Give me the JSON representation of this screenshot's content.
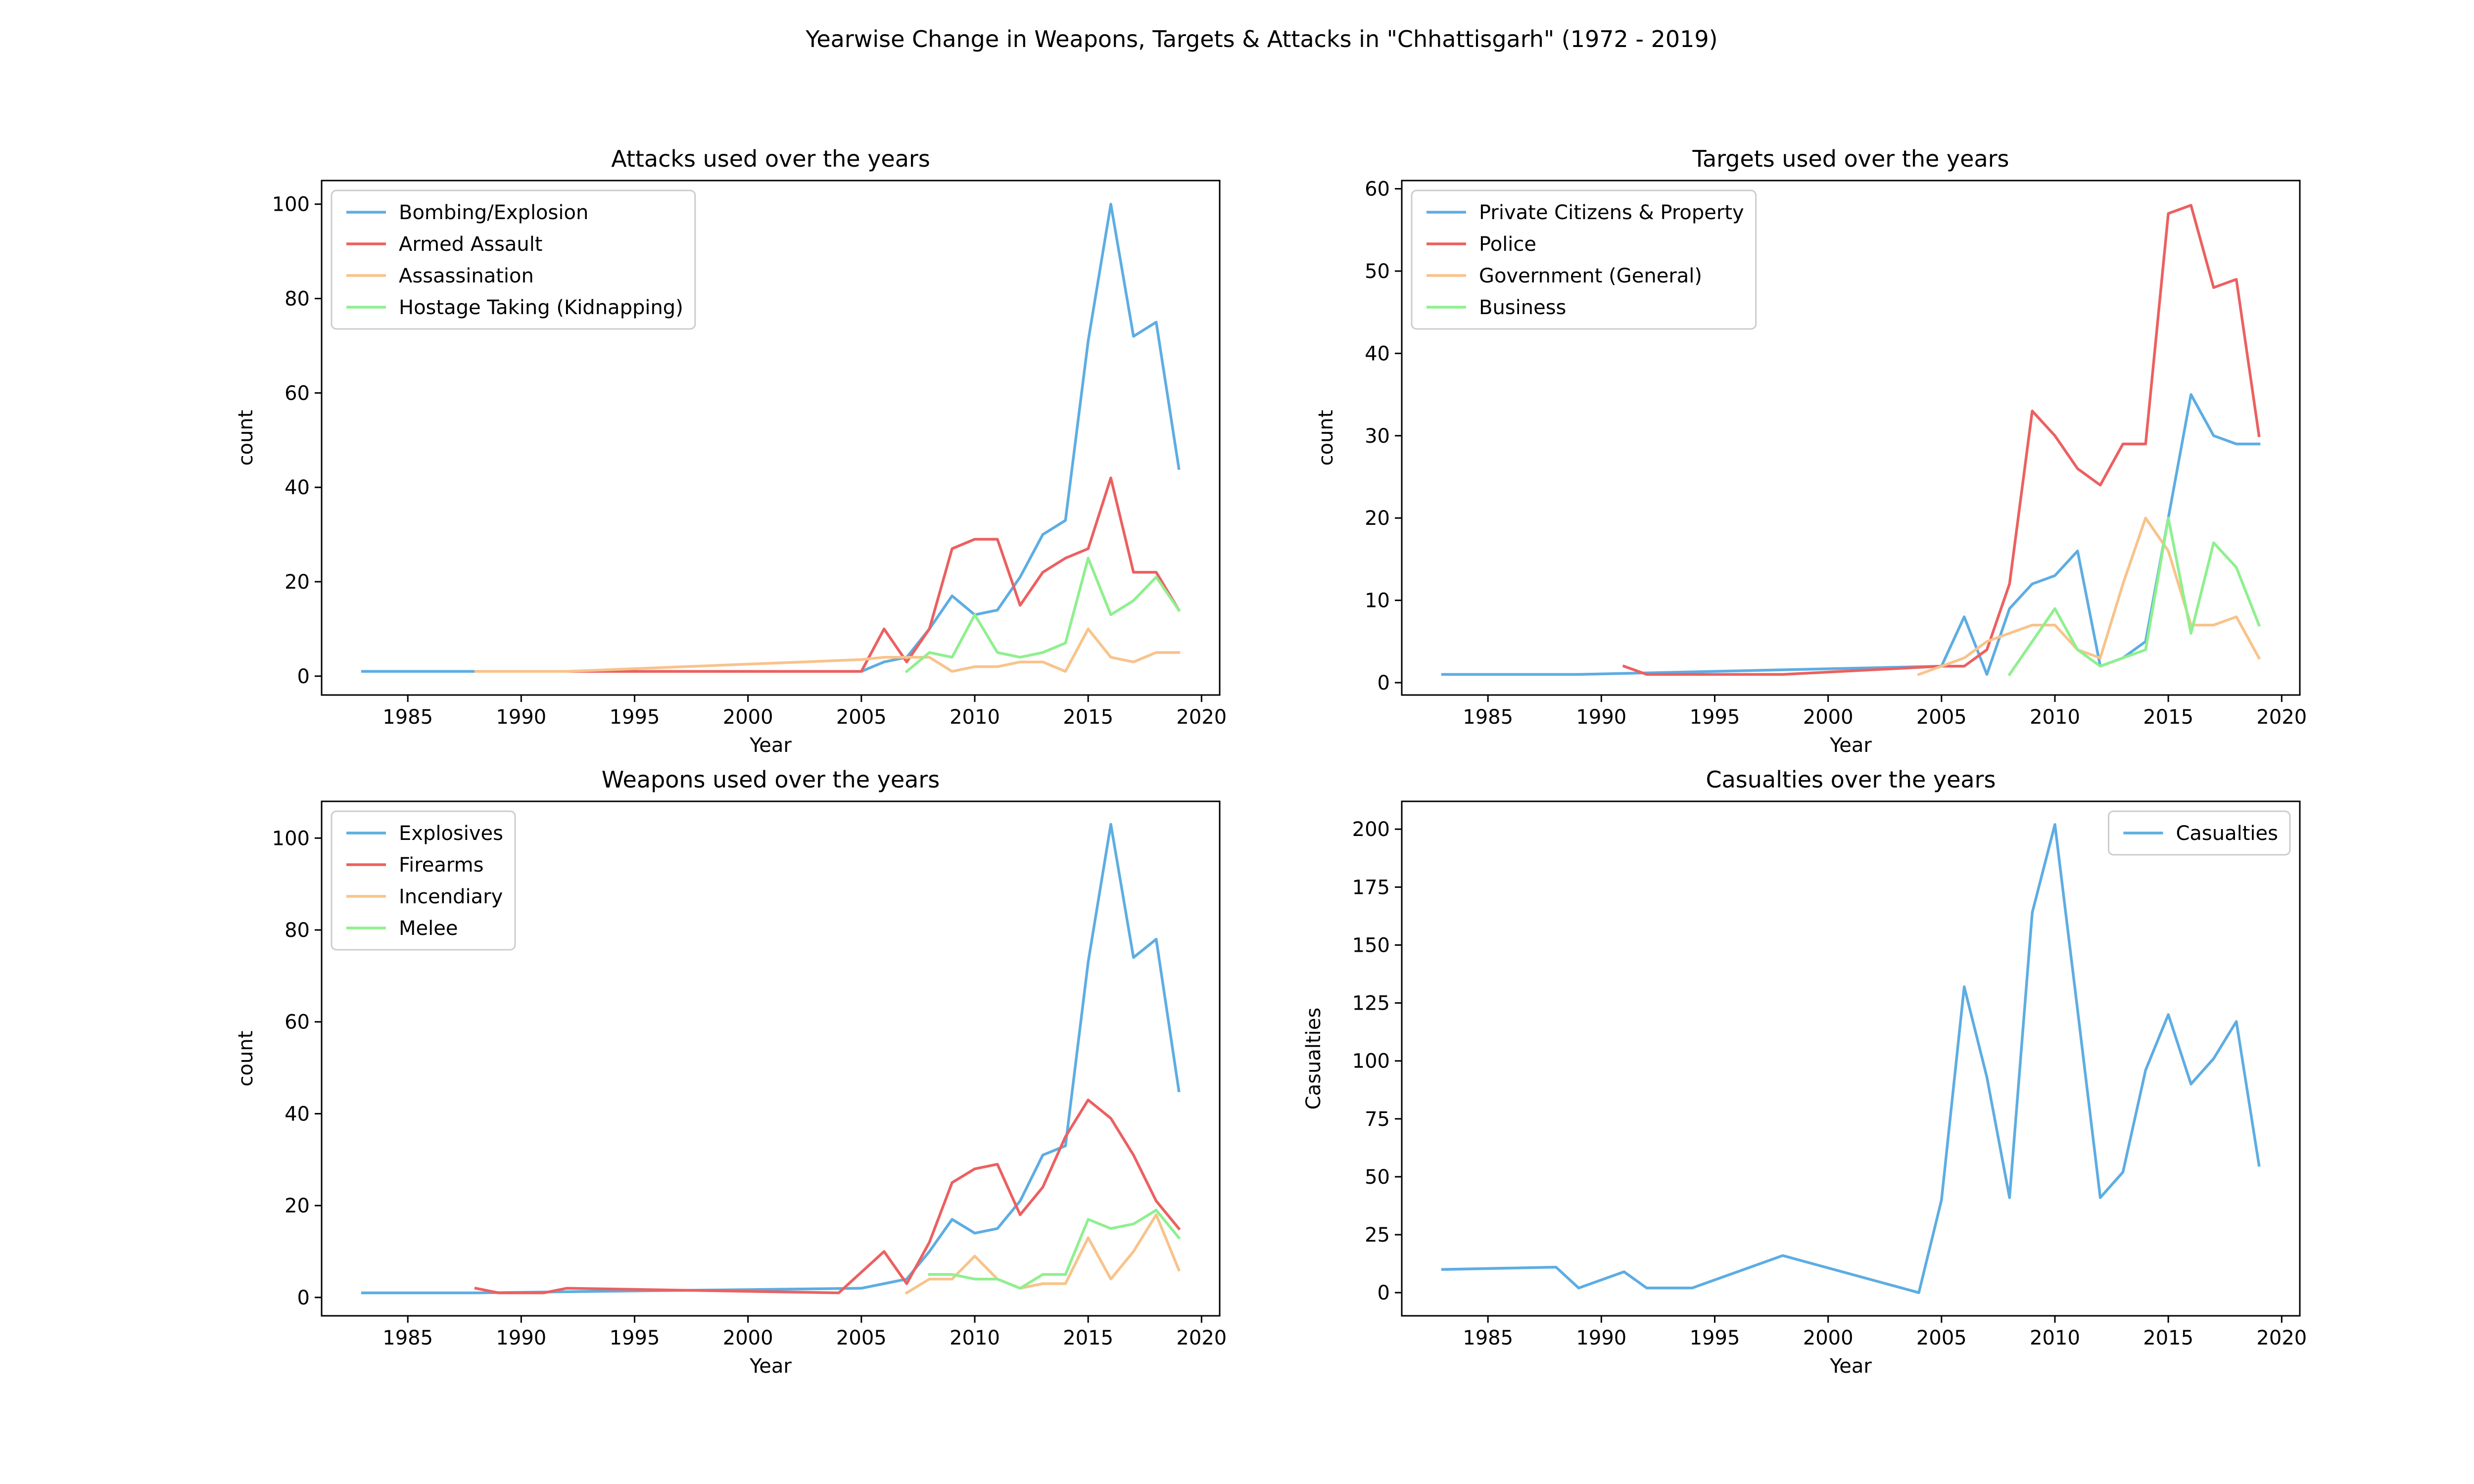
{
  "title": "Yearwise Change in Weapons, Targets & Attacks in \"Chhattisgarh\" (1972 - 2019)",
  "colors": {
    "blue": "#5dade2",
    "red": "#ec6060",
    "orange": "#f8c38b",
    "green": "#8ef08e"
  },
  "chart_data": [
    {
      "type": "line",
      "title": "Attacks used over the years",
      "xlabel": "Year",
      "ylabel": "count",
      "xlim": [
        1981.2,
        2020.8
      ],
      "ylim": [
        -4,
        105
      ],
      "xticks": [
        1985,
        1990,
        1995,
        2000,
        2005,
        2010,
        2015,
        2020
      ],
      "yticks": [
        0,
        20,
        40,
        60,
        80,
        100
      ],
      "legend": "upper-left",
      "grid": false,
      "series": [
        {
          "name": "Bombing/Explosion",
          "color": "#5dade2",
          "x": [
            1983,
            1988,
            2005,
            2006,
            2007,
            2008,
            2009,
            2010,
            2011,
            2012,
            2013,
            2014,
            2015,
            2016,
            2017,
            2018,
            2019
          ],
          "y": [
            1,
            1,
            1,
            3,
            4,
            10,
            17,
            13,
            14,
            21,
            30,
            33,
            71,
            100,
            72,
            75,
            44
          ]
        },
        {
          "name": "Armed Assault",
          "color": "#ec6060",
          "x": [
            1988,
            2005,
            2006,
            2007,
            2008,
            2009,
            2010,
            2011,
            2012,
            2013,
            2014,
            2015,
            2016,
            2017,
            2018,
            2019
          ],
          "y": [
            1,
            1,
            10,
            3,
            10,
            27,
            29,
            29,
            15,
            22,
            25,
            27,
            42,
            22,
            22,
            14
          ]
        },
        {
          "name": "Assassination",
          "color": "#f8c38b",
          "x": [
            1988,
            1992,
            2005,
            2006,
            2007,
            2008,
            2009,
            2010,
            2011,
            2012,
            2013,
            2014,
            2015,
            2016,
            2017,
            2018,
            2019
          ],
          "y": [
            1,
            1,
            3.5,
            4,
            4,
            4,
            1,
            2,
            2,
            3,
            3,
            1,
            10,
            4,
            3,
            5,
            5
          ]
        },
        {
          "name": "Hostage Taking (Kidnapping)",
          "color": "#8ef08e",
          "x": [
            2007,
            2008,
            2009,
            2010,
            2011,
            2012,
            2013,
            2014,
            2015,
            2016,
            2017,
            2018,
            2019
          ],
          "y": [
            1,
            5,
            4,
            13,
            5,
            4,
            5,
            7,
            25,
            13,
            16,
            21,
            14
          ]
        }
      ]
    },
    {
      "type": "line",
      "title": "Targets used over the years",
      "xlabel": "Year",
      "ylabel": "count",
      "xlim": [
        1981.2,
        2020.8
      ],
      "ylim": [
        -1.5,
        61
      ],
      "xticks": [
        1985,
        1990,
        1995,
        2000,
        2005,
        2010,
        2015,
        2020
      ],
      "yticks": [
        0,
        10,
        20,
        30,
        40,
        50,
        60
      ],
      "legend": "upper-left",
      "grid": false,
      "series": [
        {
          "name": "Private Citizens & Property",
          "color": "#5dade2",
          "x": [
            1983,
            1989,
            2005,
            2006,
            2007,
            2008,
            2009,
            2010,
            2011,
            2012,
            2013,
            2014,
            2015,
            2016,
            2017,
            2018,
            2019
          ],
          "y": [
            1,
            1,
            2,
            8,
            1,
            9,
            12,
            13,
            16,
            2,
            3,
            5,
            20,
            35,
            30,
            29,
            29
          ]
        },
        {
          "name": "Police",
          "color": "#ec6060",
          "x": [
            1991,
            1992,
            1998,
            2005,
            2006,
            2007,
            2008,
            2009,
            2010,
            2011,
            2012,
            2013,
            2014,
            2015,
            2016,
            2017,
            2018,
            2019
          ],
          "y": [
            2,
            1,
            1,
            2,
            2,
            4,
            12,
            33,
            30,
            26,
            24,
            29,
            29,
            57,
            58,
            48,
            49,
            30
          ]
        },
        {
          "name": "Government (General)",
          "color": "#f8c38b",
          "x": [
            2004,
            2005,
            2006,
            2007,
            2008,
            2009,
            2010,
            2011,
            2012,
            2013,
            2014,
            2015,
            2016,
            2017,
            2018,
            2019
          ],
          "y": [
            1,
            2,
            3,
            5,
            6,
            7,
            7,
            4,
            3,
            12,
            20,
            16,
            7,
            7,
            8,
            3
          ]
        },
        {
          "name": "Business",
          "color": "#8ef08e",
          "x": [
            2008,
            2009,
            2010,
            2011,
            2012,
            2013,
            2014,
            2015,
            2016,
            2017,
            2018,
            2019
          ],
          "y": [
            1,
            5,
            9,
            4,
            2,
            3,
            4,
            20,
            6,
            17,
            14,
            7
          ]
        }
      ]
    },
    {
      "type": "line",
      "title": "Weapons used over the years",
      "xlabel": "Year",
      "ylabel": "count",
      "xlim": [
        1981.2,
        2020.8
      ],
      "ylim": [
        -4,
        108
      ],
      "xticks": [
        1985,
        1990,
        1995,
        2000,
        2005,
        2010,
        2015,
        2020
      ],
      "yticks": [
        0,
        20,
        40,
        60,
        80,
        100
      ],
      "legend": "upper-left",
      "grid": false,
      "series": [
        {
          "name": "Explosives",
          "color": "#5dade2",
          "x": [
            1983,
            1988,
            2005,
            2006,
            2007,
            2008,
            2009,
            2010,
            2011,
            2012,
            2013,
            2014,
            2015,
            2016,
            2017,
            2018,
            2019
          ],
          "y": [
            1,
            1,
            2,
            3,
            4,
            10,
            17,
            14,
            15,
            21,
            31,
            33,
            73,
            103,
            74,
            78,
            45
          ]
        },
        {
          "name": "Firearms",
          "color": "#ec6060",
          "x": [
            1988,
            1989,
            1991,
            1992,
            2004,
            2006,
            2007,
            2008,
            2009,
            2010,
            2011,
            2012,
            2013,
            2014,
            2015,
            2016,
            2017,
            2018,
            2019
          ],
          "y": [
            2,
            1,
            1,
            2,
            1,
            10,
            3,
            12,
            25,
            28,
            29,
            18,
            24,
            35,
            43,
            39,
            31,
            21,
            15
          ]
        },
        {
          "name": "Incendiary",
          "color": "#f8c38b",
          "x": [
            2007,
            2008,
            2009,
            2010,
            2011,
            2012,
            2013,
            2014,
            2015,
            2016,
            2017,
            2018,
            2019
          ],
          "y": [
            1,
            4,
            4,
            9,
            4,
            2,
            3,
            3,
            13,
            4,
            10,
            18,
            6
          ]
        },
        {
          "name": "Melee",
          "color": "#8ef08e",
          "x": [
            2008,
            2009,
            2010,
            2011,
            2012,
            2013,
            2014,
            2015,
            2016,
            2017,
            2018,
            2019
          ],
          "y": [
            5,
            5,
            4,
            4,
            2,
            5,
            5,
            17,
            15,
            16,
            19,
            13
          ]
        }
      ]
    },
    {
      "type": "line",
      "title": "Casualties over the years",
      "xlabel": "Year",
      "ylabel": "Casualties",
      "xlim": [
        1981.2,
        2020.8
      ],
      "ylim": [
        -10,
        212
      ],
      "xticks": [
        1985,
        1990,
        1995,
        2000,
        2005,
        2010,
        2015,
        2020
      ],
      "yticks": [
        0,
        25,
        50,
        75,
        100,
        125,
        150,
        175,
        200
      ],
      "legend": "upper-right",
      "grid": false,
      "series": [
        {
          "name": "Casualties",
          "color": "#5dade2",
          "x": [
            1983,
            1988,
            1989,
            1991,
            1992,
            1994,
            1998,
            2004,
            2005,
            2006,
            2007,
            2008,
            2009,
            2010,
            2011,
            2012,
            2013,
            2014,
            2015,
            2016,
            2017,
            2018,
            2019
          ],
          "y": [
            10,
            11,
            2,
            9,
            2,
            2,
            16,
            0,
            40,
            132,
            93,
            41,
            164,
            202,
            122,
            41,
            52,
            96,
            120,
            90,
            101,
            117,
            55
          ]
        }
      ]
    }
  ]
}
